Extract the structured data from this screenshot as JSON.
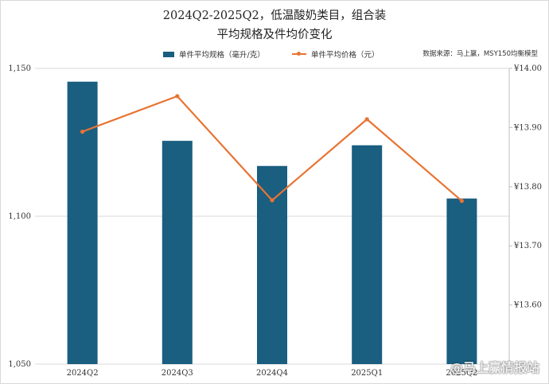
{
  "header": {
    "title_line1": "2024Q2-2025Q2，低温酸奶类目，组合装",
    "title_line2": "平均规格及件均价变化"
  },
  "legend": {
    "bar_label": "单件平均规格（毫升/克）",
    "line_label": "单件平均价格（元）"
  },
  "source": "数据来源：马上赢，MSY150均衡模型",
  "watermark": "@马上赢情报站",
  "colors": {
    "bar": "#1a5e80",
    "line": "#e87433",
    "grid": "#d9d9d9"
  },
  "chart_data": {
    "type": "bar",
    "categories": [
      "2024Q2",
      "2024Q3",
      "2024Q4",
      "2025Q1",
      "2025Q2"
    ],
    "series": [
      {
        "name": "单件平均规格（毫升/克）",
        "type": "bar",
        "axis": "left",
        "values": [
          1145.5,
          1125.5,
          1117,
          1124,
          1106
        ]
      },
      {
        "name": "单件平均价格（元）",
        "type": "line",
        "axis": "right",
        "values": [
          13.893,
          13.953,
          13.777,
          13.914,
          13.776
        ]
      }
    ],
    "y_left": {
      "lim": [
        1050,
        1150
      ],
      "ticks": [
        1050,
        1100,
        1150
      ],
      "tick_labels": [
        "1,050",
        "1,100",
        "1,150"
      ]
    },
    "y_right": {
      "lim": [
        13.5,
        14.0
      ],
      "ticks": [
        13.6,
        13.7,
        13.8,
        13.9,
        14.0
      ],
      "tick_labels": [
        "¥13.60",
        "¥13.70",
        "¥13.80",
        "¥13.90",
        "¥14.00"
      ]
    },
    "grid": true,
    "legend_position": "top"
  }
}
